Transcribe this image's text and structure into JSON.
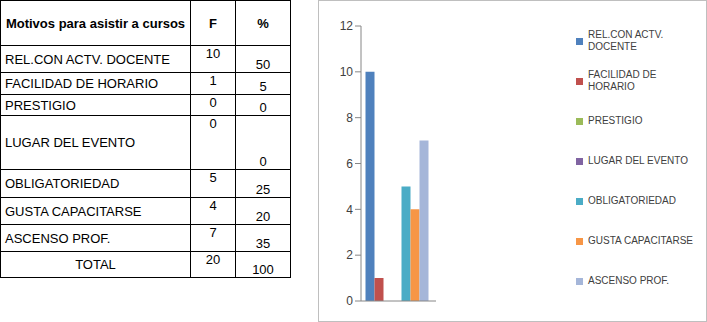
{
  "table": {
    "header": [
      "Motivos para asistir a cursos",
      "F",
      "%"
    ],
    "rows": [
      [
        "REL.CON ACTV. DOCENTE",
        10,
        50
      ],
      [
        "FACILIDAD DE HORARIO",
        1,
        5
      ],
      [
        "PRESTIGIO",
        0,
        0
      ],
      [
        "LUGAR DEL EVENTO",
        0,
        0
      ],
      [
        "OBLIGATORIEDAD",
        5,
        25
      ],
      [
        "GUSTA CAPACITARSE",
        4,
        20
      ],
      [
        "ASCENSO PROF.",
        7,
        35
      ]
    ],
    "total": [
      "TOTAL",
      20,
      100
    ]
  },
  "chart_data": {
    "type": "bar",
    "categories": [
      null
    ],
    "series": [
      {
        "name": "REL.CON ACTV. DOCENTE",
        "color": "#4f81bd",
        "values": [
          10
        ]
      },
      {
        "name": "FACILIDAD DE HORARIO",
        "color": "#c0504d",
        "values": [
          1
        ]
      },
      {
        "name": "PRESTIGIO",
        "color": "#9bbb59",
        "values": [
          0
        ]
      },
      {
        "name": "LUGAR DEL EVENTO",
        "color": "#8064a2",
        "values": [
          0
        ]
      },
      {
        "name": "OBLIGATORIEDAD",
        "color": "#4bacc6",
        "values": [
          5
        ]
      },
      {
        "name": "GUSTA CAPACITARSE",
        "color": "#f79646",
        "values": [
          4
        ]
      },
      {
        "name": "ASCENSO PROF.",
        "color": "#a5b6d9",
        "values": [
          7
        ]
      }
    ],
    "ylim": [
      0,
      12
    ],
    "yticks": [
      0,
      2,
      4,
      6,
      8,
      10,
      12
    ],
    "grid": false,
    "legend": "right",
    "tick_labels": "y"
  }
}
